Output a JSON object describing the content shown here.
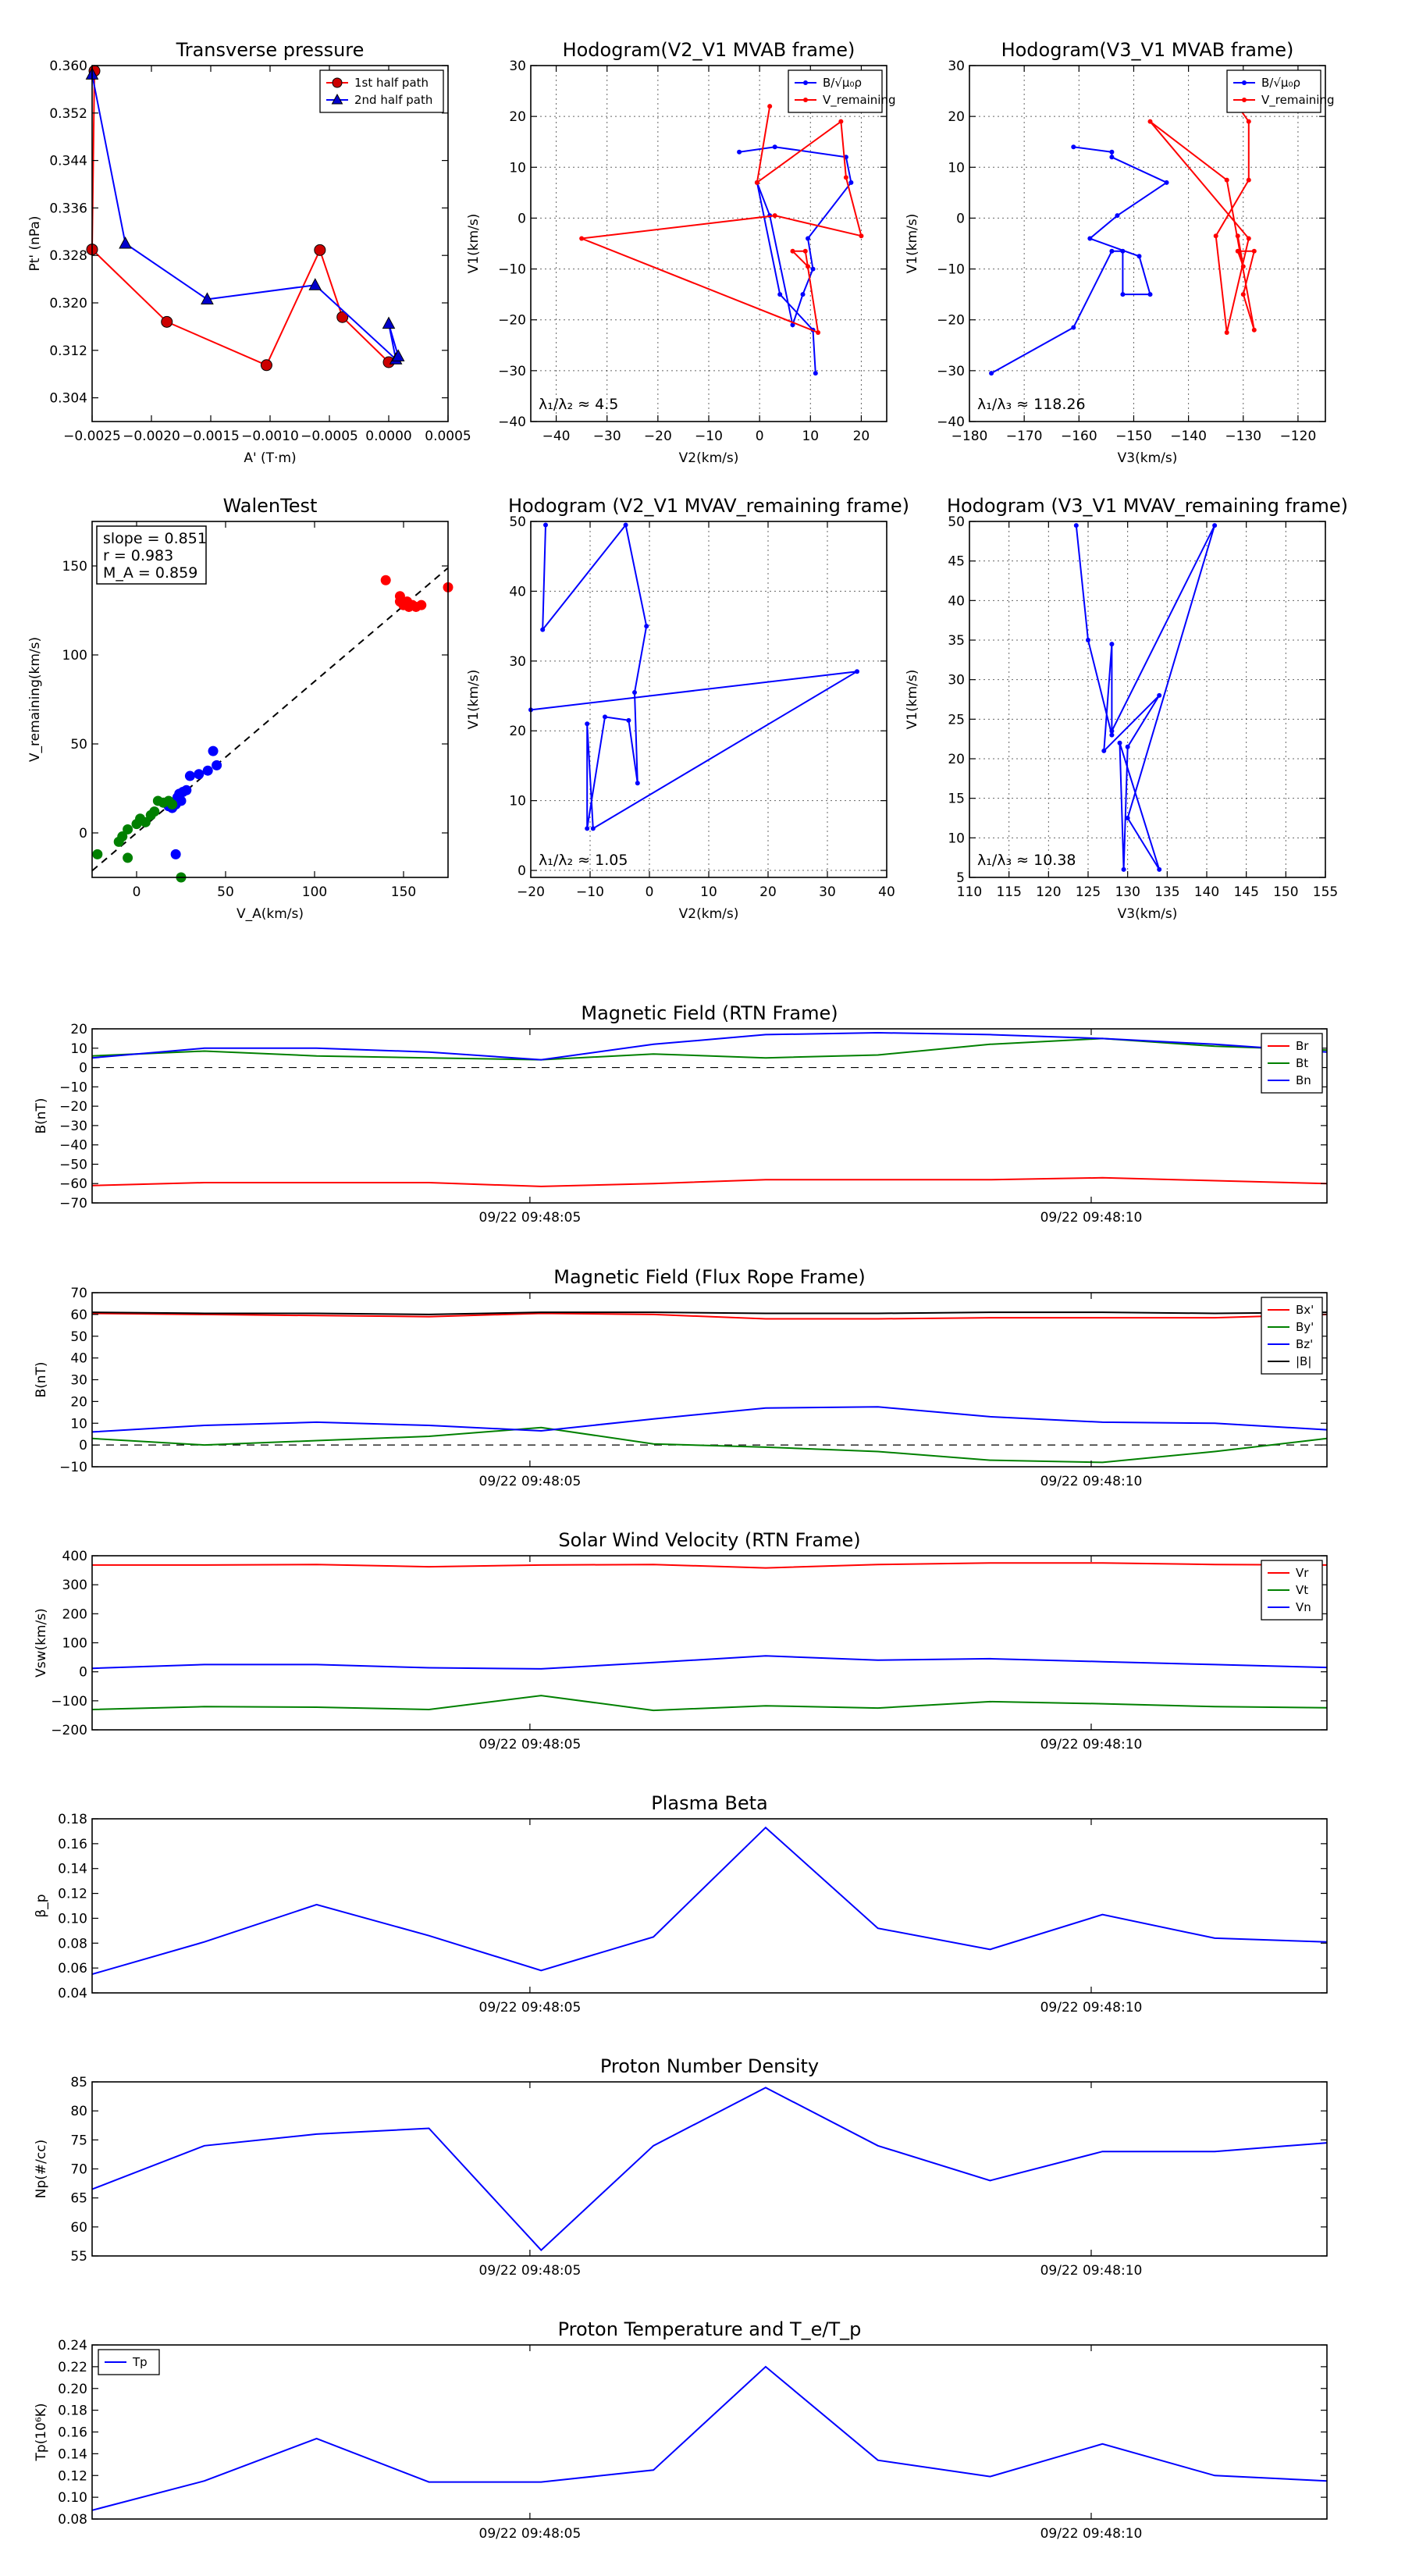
{
  "chart_data": [
    {
      "type": "line",
      "title": "Transverse pressure",
      "xlabel": "A' (T·m)",
      "ylabel": "Pt' (nPa)",
      "xlim": [
        -0.0025,
        0.0005
      ],
      "ylim": [
        0.3,
        0.36
      ],
      "xticks": [
        -0.0025,
        -0.002,
        -0.0015,
        -0.001,
        -0.0005,
        0.0,
        0.0005
      ],
      "xtick_labels": [
        "−0.0025",
        "−0.0020",
        "−0.0015",
        "−0.0010",
        "−0.0005",
        "0.0000",
        "0.0005"
      ],
      "yticks": [
        0.304,
        0.312,
        0.32,
        0.328,
        0.336,
        0.344,
        0.352,
        0.36
      ],
      "ytick_labels": [
        "0.304",
        "0.312",
        "0.320",
        "0.328",
        "0.336",
        "0.344",
        "0.352",
        "0.360"
      ],
      "grid": false,
      "legend": "top-right",
      "series": [
        {
          "name": "1st half path",
          "color": "#ff0000",
          "marker": "circle",
          "marker_color": "#cc0000",
          "x": [
            -0.00248,
            -0.0025,
            -0.00187,
            -0.00103,
            -0.00058,
            -0.00039,
            0.0
          ],
          "y": [
            0.3591,
            0.329,
            0.3168,
            0.3095,
            0.3289,
            0.3176,
            0.31
          ]
        },
        {
          "name": "2nd half path",
          "color": "#0000ff",
          "marker": "triangle",
          "marker_color": "#0000cc",
          "x": [
            -0.0025,
            -0.00222,
            -0.00153,
            -0.00062,
            6e-05,
            0.0,
            8e-05
          ],
          "y": [
            0.3585,
            0.33,
            0.3206,
            0.323,
            0.3105,
            0.3165,
            0.311
          ]
        }
      ]
    },
    {
      "type": "line",
      "title": "Hodogram(V2_V1 MVAB frame)",
      "xlabel": "V2(km/s)",
      "ylabel": "V1(km/s)",
      "xlim": [
        -45,
        25
      ],
      "ylim": [
        -40,
        30
      ],
      "xticks": [
        -40,
        -30,
        -20,
        -10,
        0,
        10,
        20
      ],
      "xtick_labels": [
        "−40",
        "−30",
        "−20",
        "−10",
        "0",
        "10",
        "20"
      ],
      "yticks": [
        -40,
        -30,
        -20,
        -10,
        0,
        10,
        20,
        30
      ],
      "ytick_labels": [
        "−40",
        "−30",
        "−20",
        "−10",
        "0",
        "10",
        "20",
        "30"
      ],
      "grid": true,
      "legend": "top-right",
      "annotation": "λ₁/λ₂ ≈ 4.5",
      "series": [
        {
          "name": "B/√μ₀ρ",
          "color": "#0000ff",
          "x": [
            -4,
            3,
            17,
            18,
            9.5,
            10.5,
            8.5,
            6.5,
            2,
            -0.5,
            4,
            10.5,
            11
          ],
          "y": [
            13,
            14,
            12,
            7,
            -4,
            -10,
            -15,
            -21,
            0.5,
            7,
            -15,
            -22,
            -30.5
          ]
        },
        {
          "name": "V_remaining",
          "color": "#ff0000",
          "x": [
            2,
            -0.5,
            16,
            17,
            20,
            3,
            -35,
            11.5,
            9,
            6.5,
            9.5
          ],
          "y": [
            22,
            7,
            19,
            8,
            -3.5,
            0.5,
            -4,
            -22.5,
            -6.5,
            -6.5,
            -9.5
          ]
        }
      ]
    },
    {
      "type": "line",
      "title": "Hodogram(V3_V1 MVAB frame)",
      "xlabel": "V3(km/s)",
      "ylabel": "V1(km/s)",
      "xlim": [
        -180,
        -115
      ],
      "ylim": [
        -40,
        30
      ],
      "xticks": [
        -180,
        -170,
        -160,
        -150,
        -140,
        -130,
        -120
      ],
      "xtick_labels": [
        "−180",
        "−170",
        "−160",
        "−150",
        "−140",
        "−130",
        "−120"
      ],
      "yticks": [
        -40,
        -30,
        -20,
        -10,
        0,
        10,
        20,
        30
      ],
      "ytick_labels": [
        "−40",
        "−30",
        "−20",
        "−10",
        "0",
        "10",
        "20",
        "30"
      ],
      "grid": true,
      "legend": "top-right",
      "annotation": "λ₁/λ₃ ≈ 118.26",
      "series": [
        {
          "name": "B/√μ₀ρ",
          "color": "#0000ff",
          "x": [
            -161,
            -154,
            -154,
            -144,
            -153,
            -158,
            -149,
            -147,
            -152,
            -152,
            -154,
            -161,
            -176
          ],
          "y": [
            14,
            13,
            12,
            7,
            0.5,
            -4,
            -7.5,
            -15,
            -15,
            -6.5,
            -6.5,
            -21.5,
            -30.5
          ]
        },
        {
          "name": "V_remaining",
          "color": "#ff0000",
          "x": [
            -131,
            -129,
            -129,
            -135,
            -133,
            -129,
            -147,
            -133,
            -128,
            -130,
            -128,
            -131,
            -130,
            -131
          ],
          "y": [
            22,
            19,
            7.5,
            -3.5,
            -22.5,
            -4,
            19,
            7.5,
            -22,
            -15,
            -6.5,
            -6.5,
            -9.5,
            -3.5
          ]
        }
      ]
    },
    {
      "type": "scatter",
      "title": "WalenTest",
      "xlabel": "V_A(km/s)",
      "ylabel": "V_remaining(km/s)",
      "xlim": [
        -25,
        175
      ],
      "ylim": [
        -25,
        175
      ],
      "xticks": [
        0,
        50,
        100,
        150
      ],
      "xtick_labels": [
        "0",
        "50",
        "100",
        "150"
      ],
      "yticks": [
        0,
        50,
        100,
        150
      ],
      "ytick_labels": [
        "0",
        "50",
        "100",
        "150"
      ],
      "grid": false,
      "annotation": [
        "slope = 0.851",
        "r = 0.983",
        "M_A = 0.859"
      ],
      "fit_line": {
        "slope": 0.851,
        "color": "#000000",
        "style": "dashed"
      },
      "series": [
        {
          "name": "red",
          "color": "#ff0000",
          "x": [
            140,
            148,
            150,
            152,
            153,
            155,
            157,
            160,
            148,
            150,
            175
          ],
          "y": [
            142,
            133,
            128,
            130,
            127,
            128,
            127,
            128,
            130,
            128,
            138
          ]
        },
        {
          "name": "blue",
          "color": "#0000ff",
          "x": [
            20,
            22,
            25,
            23,
            24,
            26,
            28,
            30,
            35,
            40,
            45,
            43,
            22,
            18
          ],
          "y": [
            14,
            16,
            18,
            20,
            22,
            23,
            24,
            32,
            33,
            35,
            38,
            46,
            -12,
            15
          ]
        },
        {
          "name": "green",
          "color": "#008000",
          "x": [
            -22,
            -8,
            -10,
            -5,
            0,
            2,
            5,
            8,
            10,
            12,
            15,
            18,
            20,
            25,
            -5
          ],
          "y": [
            -12,
            -2,
            -5,
            2,
            5,
            8,
            6,
            10,
            12,
            18,
            17,
            18,
            16,
            -25,
            -14
          ]
        }
      ]
    },
    {
      "type": "line",
      "title": "Hodogram (V2_V1 MVAV_remaining frame)",
      "xlabel": "V2(km/s)",
      "ylabel": "V1(km/s)",
      "xlim": [
        -20,
        40
      ],
      "ylim": [
        -1,
        50
      ],
      "xticks": [
        -20,
        -10,
        0,
        10,
        20,
        30,
        40
      ],
      "xtick_labels": [
        "−20",
        "−10",
        "0",
        "10",
        "20",
        "30",
        "40"
      ],
      "yticks": [
        0,
        10,
        20,
        30,
        40,
        50
      ],
      "ytick_labels": [
        "0",
        "10",
        "20",
        "30",
        "40",
        "50"
      ],
      "grid": true,
      "annotation": "λ₁/λ₂ ≈ 1.05",
      "series": [
        {
          "name": "hodogram",
          "color": "#0000ff",
          "x": [
            -17.5,
            -18,
            -4,
            -0.5,
            -2.5,
            -2,
            -3.5,
            -7.5,
            -10.5,
            -10.5,
            -9.5,
            35,
            -20
          ],
          "y": [
            49.5,
            34.5,
            49.5,
            35,
            25.5,
            12.5,
            21.5,
            22,
            6,
            21,
            6,
            28.5,
            23
          ]
        }
      ]
    },
    {
      "type": "line",
      "title": "Hodogram (V3_V1 MVAV_remaining frame)",
      "xlabel": "V3(km/s)",
      "ylabel": "V1(km/s)",
      "xlim": [
        110,
        155
      ],
      "ylim": [
        5,
        50
      ],
      "xticks": [
        110,
        115,
        120,
        125,
        130,
        135,
        140,
        145,
        150,
        155
      ],
      "xtick_labels": [
        "110",
        "115",
        "120",
        "125",
        "130",
        "135",
        "140",
        "145",
        "150",
        "155"
      ],
      "yticks": [
        5,
        10,
        15,
        20,
        25,
        30,
        35,
        40,
        45,
        50
      ],
      "ytick_labels": [
        "5",
        "10",
        "15",
        "20",
        "25",
        "30",
        "35",
        "40",
        "45",
        "50"
      ],
      "grid": true,
      "annotation": "λ₁/λ₃ ≈ 10.38",
      "series": [
        {
          "name": "hodogram",
          "color": "#0000ff",
          "x": [
            123.5,
            125,
            128,
            128,
            127,
            134,
            130,
            129.5,
            129,
            134,
            130,
            141,
            128
          ],
          "y": [
            49.5,
            35,
            23,
            34.5,
            21,
            28,
            21.5,
            6,
            22,
            6,
            12.5,
            49.5,
            23.5
          ]
        }
      ]
    },
    {
      "type": "line",
      "title": "Magnetic Field (RTN Frame)",
      "ylabel": "B(nT)",
      "xtick_labels": [
        "09/22 09:48:05",
        "09/22 09:48:10"
      ],
      "ylim": [
        -70,
        20
      ],
      "yticks": [
        -70,
        -60,
        -50,
        -40,
        -30,
        -20,
        -10,
        0,
        10,
        20
      ],
      "ytick_labels": [
        "−70",
        "−60",
        "−50",
        "−40",
        "−30",
        "−20",
        "−10",
        "0",
        "10",
        "20"
      ],
      "legend": "top-right",
      "series": [
        {
          "name": "Br",
          "color": "#ff0000",
          "values": [
            -61,
            -59.5,
            -59.5,
            -59.5,
            -61.5,
            -60,
            -58,
            -58,
            -58,
            -57,
            -58.5,
            -60
          ]
        },
        {
          "name": "Bt",
          "color": "#008000",
          "values": [
            6,
            8.5,
            6,
            5,
            4,
            7,
            5,
            6.5,
            12,
            15,
            11,
            9
          ]
        },
        {
          "name": "Bn",
          "color": "#0000ff",
          "values": [
            5,
            10,
            10,
            8,
            4,
            12,
            17,
            18,
            17,
            15,
            12,
            8
          ]
        }
      ]
    },
    {
      "type": "line",
      "title": "Magnetic Field (Flux Rope Frame)",
      "ylabel": "B(nT)",
      "xtick_labels": [
        "09/22 09:48:05",
        "09/22 09:48:10"
      ],
      "ylim": [
        -10,
        70
      ],
      "yticks": [
        -10,
        0,
        10,
        20,
        30,
        40,
        50,
        60,
        70
      ],
      "ytick_labels": [
        "−10",
        "0",
        "10",
        "20",
        "30",
        "40",
        "50",
        "60",
        "70"
      ],
      "legend": "top-right",
      "series": [
        {
          "name": "Bx'",
          "color": "#ff0000",
          "values": [
            60.5,
            60,
            59.5,
            59,
            60.5,
            60,
            58,
            58,
            58.5,
            58.5,
            58.5,
            60
          ]
        },
        {
          "name": "By'",
          "color": "#008000",
          "values": [
            3,
            0,
            2,
            4,
            8,
            0.5,
            -1,
            -3,
            -7,
            -8,
            -3,
            3
          ]
        },
        {
          "name": "Bz'",
          "color": "#0000ff",
          "values": [
            6,
            9,
            10.5,
            9,
            6.5,
            12,
            17,
            17.5,
            13,
            10.5,
            10,
            7
          ]
        },
        {
          "name": "|B|",
          "color": "#000000",
          "values": [
            61,
            60.5,
            60.5,
            60,
            61,
            61,
            60.5,
            60.5,
            61,
            61,
            60.5,
            61
          ]
        }
      ]
    },
    {
      "type": "line",
      "title": "Solar Wind Velocity (RTN Frame)",
      "ylabel": "Vsw(km/s)",
      "xtick_labels": [
        "09/22 09:48:05",
        "09/22 09:48:10"
      ],
      "ylim": [
        -200,
        400
      ],
      "yticks": [
        -200,
        -100,
        0,
        100,
        200,
        300,
        400
      ],
      "ytick_labels": [
        "−200",
        "−100",
        "0",
        "100",
        "200",
        "300",
        "400"
      ],
      "legend": "top-right",
      "series": [
        {
          "name": "Vr",
          "color": "#ff0000",
          "values": [
            368,
            368,
            370,
            362,
            368,
            370,
            358,
            370,
            375,
            375,
            370,
            368
          ]
        },
        {
          "name": "Vt",
          "color": "#008000",
          "values": [
            -130,
            -120,
            -122,
            -130,
            -82,
            -133,
            -117,
            -125,
            -103,
            -110,
            -120,
            -124
          ]
        },
        {
          "name": "Vn",
          "color": "#0000ff",
          "values": [
            12,
            25,
            25,
            14,
            10,
            32,
            55,
            40,
            45,
            35,
            25,
            15
          ]
        }
      ]
    },
    {
      "type": "line",
      "title": "Plasma Beta",
      "ylabel": "β_p",
      "xtick_labels": [
        "09/22 09:48:05",
        "09/22 09:48:10"
      ],
      "ylim": [
        0.04,
        0.18
      ],
      "yticks": [
        0.04,
        0.06,
        0.08,
        0.1,
        0.12,
        0.14,
        0.16,
        0.18
      ],
      "ytick_labels": [
        "0.04",
        "0.06",
        "0.08",
        "0.10",
        "0.12",
        "0.14",
        "0.16",
        "0.18"
      ],
      "series": [
        {
          "name": "beta",
          "color": "#0000ff",
          "values": [
            0.055,
            0.081,
            0.111,
            0.086,
            0.058,
            0.085,
            0.173,
            0.092,
            0.075,
            0.103,
            0.084,
            0.081
          ]
        }
      ]
    },
    {
      "type": "line",
      "title": "Proton Number Density",
      "ylabel": "Np(#/cc)",
      "xtick_labels": [
        "09/22 09:48:05",
        "09/22 09:48:10"
      ],
      "ylim": [
        55,
        85
      ],
      "yticks": [
        55,
        60,
        65,
        70,
        75,
        80,
        85
      ],
      "ytick_labels": [
        "55",
        "60",
        "65",
        "70",
        "75",
        "80",
        "85"
      ],
      "series": [
        {
          "name": "Np",
          "color": "#0000ff",
          "values": [
            66.5,
            74,
            76,
            77,
            56,
            74,
            84,
            74,
            68,
            73,
            73,
            74.5
          ]
        }
      ]
    },
    {
      "type": "line",
      "title": "Proton Temperature and T_e/T_p",
      "ylabel": "Tp(10⁶K)",
      "xtick_labels": [
        "09/22 09:48:05",
        "09/22 09:48:10"
      ],
      "ylim": [
        0.08,
        0.24
      ],
      "yticks": [
        0.08,
        0.1,
        0.12,
        0.14,
        0.16,
        0.18,
        0.2,
        0.22,
        0.24
      ],
      "ytick_labels": [
        "0.08",
        "0.10",
        "0.12",
        "0.14",
        "0.16",
        "0.18",
        "0.20",
        "0.22",
        "0.24"
      ],
      "legend": "top-left",
      "series": [
        {
          "name": "Tp",
          "color": "#0000ff",
          "values": [
            0.088,
            0.115,
            0.154,
            0.114,
            0.114,
            0.125,
            0.22,
            0.134,
            0.119,
            0.149,
            0.12,
            0.115
          ]
        }
      ]
    }
  ]
}
